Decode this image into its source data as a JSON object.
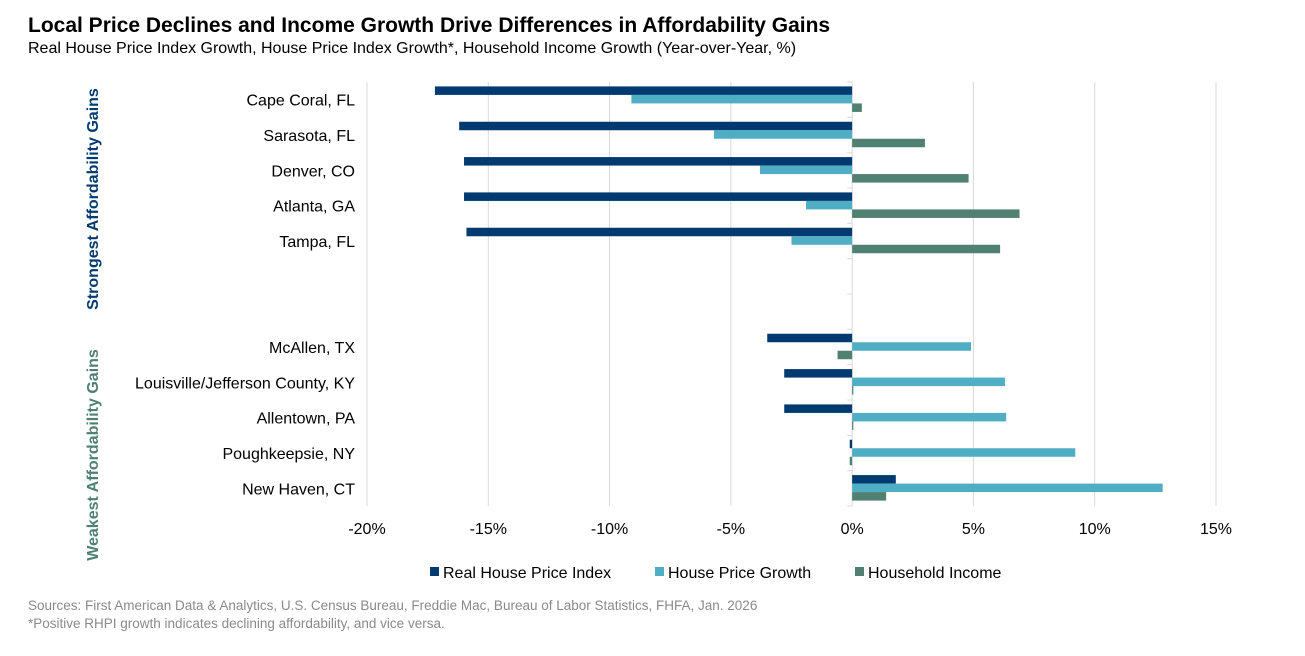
{
  "title": "Local Price Declines and Income Growth Drive Differences in Affordability Gains",
  "subtitle": "Real House Price Index Growth, House Price Index Growth*, Household Income Growth (Year-over-Year, %)",
  "sources": "Sources: First American Data & Analytics, U.S. Census Bureau, Freddie Mac, Bureau of Labor Statistics, FHFA, Jan. 2026",
  "footnote": "*Positive RHPI growth indicates declining affordability, and vice versa.",
  "chart_data": {
    "type": "bar",
    "orientation": "horizontal",
    "title": "Local Price Declines and Income Growth Drive Differences in Affordability Gains",
    "categories": [
      "Cape Coral, FL",
      "Sarasota, FL",
      "Denver, CO",
      "Atlanta, GA",
      "Tampa, FL",
      "",
      "",
      "McAllen, TX",
      "Louisville/Jefferson County, KY",
      "Allentown, PA",
      "Poughkeepsie, NY",
      "New Haven, CT"
    ],
    "groups": [
      {
        "label": "Strongest Affordability Gains",
        "color": "#003A70"
      },
      {
        "label": "Weakest Affordability Gains",
        "color": "#4F8072"
      }
    ],
    "series": [
      {
        "name": "Real House Price Index",
        "color": "#003A70",
        "values": [
          -17.2,
          -16.2,
          -16.0,
          -16.0,
          -15.9,
          null,
          null,
          -3.5,
          -2.8,
          -2.8,
          -0.1,
          1.8
        ]
      },
      {
        "name": "House Price Growth",
        "color": "#4FADC4",
        "values": [
          -9.1,
          -5.7,
          -3.8,
          -1.9,
          -2.5,
          null,
          null,
          4.9,
          6.3,
          6.35,
          9.2,
          12.8
        ]
      },
      {
        "name": "Household Income",
        "color": "#4F8072",
        "values": [
          0.4,
          3.0,
          4.8,
          6.9,
          6.1,
          null,
          null,
          -0.6,
          0.05,
          0.05,
          -0.1,
          1.4
        ]
      }
    ],
    "xlim": [
      -20,
      15
    ],
    "xticks": [
      "-20%",
      "-15%",
      "-10%",
      "-5%",
      "0%",
      "5%",
      "10%",
      "15%"
    ],
    "xtick_values": [
      -20,
      -15,
      -10,
      -5,
      0,
      5,
      10,
      15
    ],
    "grid": true,
    "legend": "bottom"
  }
}
